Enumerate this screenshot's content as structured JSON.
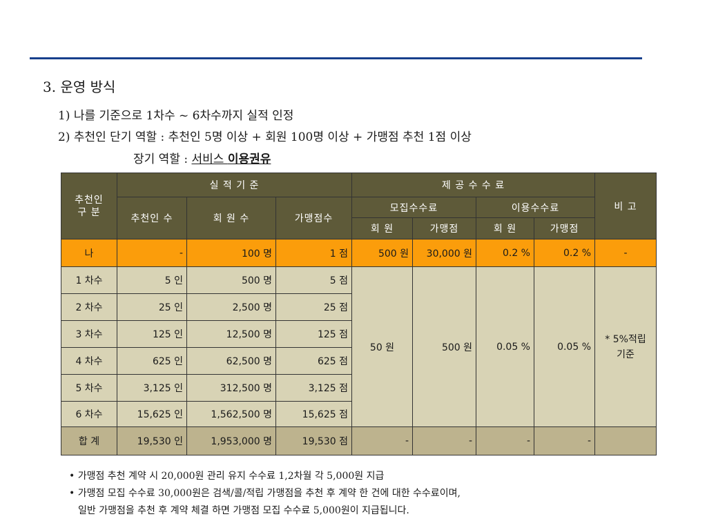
{
  "section": {
    "title": "3.  운영 방식"
  },
  "points": {
    "p1": "1)  나를 기준으로 1차수 ~ 6차수까지 실적 인정",
    "p2": "2)  추천인 단기 역할 : 추천인 5명 이상 + 회원 100명 이상 + 가맹점 추천 1점 이상",
    "p3_prefix": "장기 역할 : ",
    "p3_link1": "서비스 ",
    "p3_link2": "이용권유"
  },
  "table": {
    "headers": {
      "recommender_type": "추천인\n구  분",
      "performance": "실  적  기  준",
      "fee_provided": "제 공 수 수 료",
      "remarks": "비   고",
      "recommenders": "추천인 수",
      "members": "회 원 수",
      "stores": "가맹점수",
      "recruit_fee": "모집수수료",
      "usage_fee": "이용수수료",
      "member": "회 원",
      "store": "가맹점",
      "member2": "회 원",
      "store2": "가맹점"
    },
    "me_row": {
      "stage": "나",
      "recommenders": "-",
      "members": "100 명",
      "stores": "1 점",
      "recruit_member": "500 원",
      "recruit_store": "30,000 원",
      "usage_member": "0.2 %",
      "usage_store": "0.2 %",
      "remarks": "-"
    },
    "rows": [
      {
        "stage": "1 차수",
        "recommenders": "5 인",
        "members": "500 명",
        "stores": "5 점"
      },
      {
        "stage": "2 차수",
        "recommenders": "25 인",
        "members": "2,500 명",
        "stores": "25 점"
      },
      {
        "stage": "3 차수",
        "recommenders": "125 인",
        "members": "12,500 명",
        "stores": "125 점"
      },
      {
        "stage": "4 차수",
        "recommenders": "625 인",
        "members": "62,500 명",
        "stores": "625 점"
      },
      {
        "stage": "5 차수",
        "recommenders": "3,125 인",
        "members": "312,500 명",
        "stores": "3,125 점"
      },
      {
        "stage": "6 차수",
        "recommenders": "15,625 인",
        "members": "1,562,500 명",
        "stores": "15,625 점"
      }
    ],
    "merged": {
      "recruit_member": "50 원",
      "recruit_store": "500 원",
      "usage_member": "0.05 %",
      "usage_store": "0.05 %",
      "remarks_line1": "* 5%적립",
      "remarks_line2": "기준"
    },
    "total_row": {
      "stage": "합   계",
      "recommenders": "19,530 인",
      "members": "1,953,000 명",
      "stores": "19,530 점",
      "recruit_member": "-",
      "recruit_store": "-",
      "usage_member": "-",
      "usage_store": "-",
      "remarks": ""
    }
  },
  "notes": {
    "n1": "• 가맹점 추천 계약 시 20,000원 관리 유지 수수료 1,2차월 각 5,000원 지급",
    "n2": "• 가맹점 모집 수수료 30,000원은 검색/콜/적립 가맹점을 추천 후 계약 한 건에 대한 수수료이며,",
    "n2_cont": "일반 가맹점을 추천 후 계약 체결 하면 가맹점 모집 수수료 5,000원이 지급됩니다."
  },
  "colors": {
    "header_bg": "#5e5a39",
    "me_row_bg": "#fb9d0b",
    "body_bg": "#d8d3b5",
    "total_bg": "#bdb38e",
    "rule": "#173f8c"
  }
}
